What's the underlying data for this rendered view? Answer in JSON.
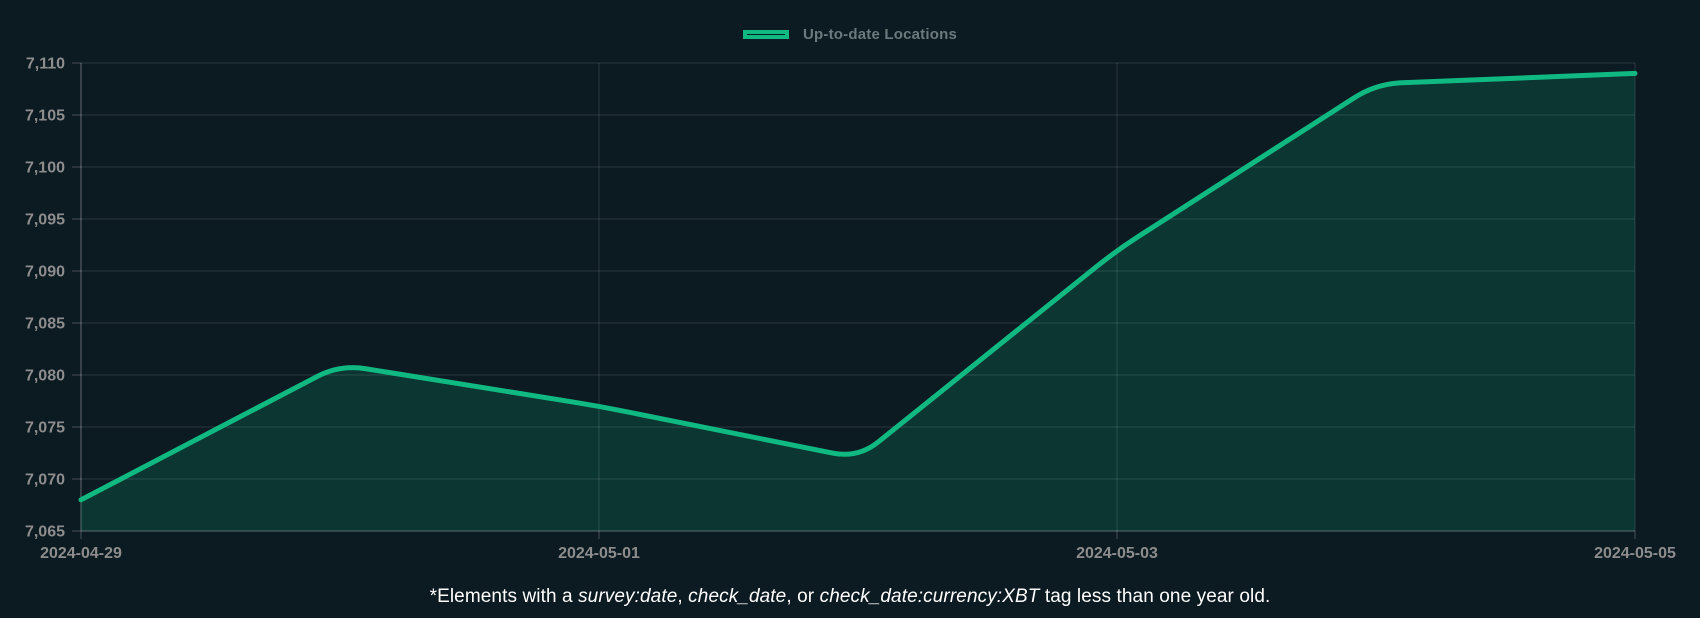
{
  "legend": {
    "label": "Up-to-date Locations"
  },
  "colors": {
    "line": "#10b981",
    "area_fill_opacity": 0.18,
    "background": "#0c1a22",
    "grid": "rgba(255,255,255,0.09)",
    "axis": "rgba(255,255,255,0.16)",
    "tick_label": "#8d8d8d",
    "legend_label": "#6b7a7c",
    "caption": "#ffffff"
  },
  "chart_data": {
    "type": "area",
    "title": "",
    "xlabel": "",
    "ylabel": "",
    "grid": true,
    "legend_position": "top-center",
    "x": [
      "2024-04-29",
      "2024-04-30",
      "2024-05-01",
      "2024-05-02",
      "2024-05-03",
      "2024-05-04",
      "2024-05-05"
    ],
    "series": [
      {
        "name": "Up-to-date Locations",
        "values": [
          7068,
          7081,
          7077,
          7072,
          7092,
          7108,
          7109
        ]
      }
    ],
    "ylim": [
      7065,
      7110
    ],
    "yticks": {
      "values": [
        7065,
        7070,
        7075,
        7080,
        7085,
        7090,
        7095,
        7100,
        7105,
        7110
      ],
      "labels": [
        "7,065",
        "7,070",
        "7,075",
        "7,080",
        "7,085",
        "7,090",
        "7,095",
        "7,100",
        "7,105",
        "7,110"
      ]
    },
    "x_tick_labels": [
      "2024-04-29",
      "2024-05-01",
      "2024-05-03",
      "2024-05-05"
    ]
  },
  "caption": {
    "segments": [
      {
        "text": "*Elements with a ",
        "italic": false
      },
      {
        "text": "survey:date",
        "italic": true
      },
      {
        "text": ", ",
        "italic": false
      },
      {
        "text": "check_date",
        "italic": true
      },
      {
        "text": ", or ",
        "italic": false
      },
      {
        "text": "check_date:currency:XBT",
        "italic": true
      },
      {
        "text": " tag less than one year old.",
        "italic": false
      }
    ]
  }
}
